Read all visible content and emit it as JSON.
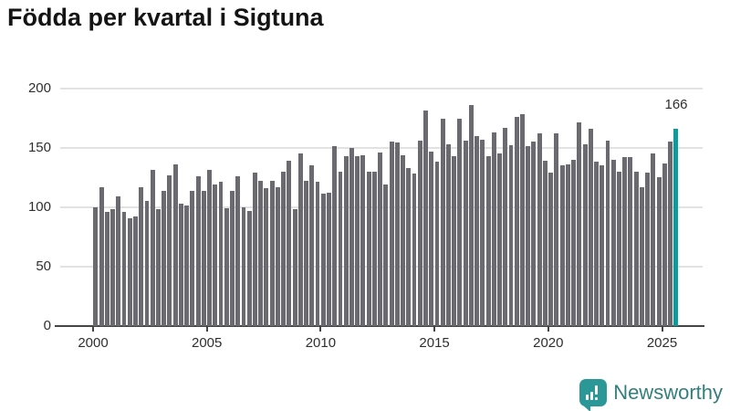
{
  "title": "Födda per kvartal i Sigtuna",
  "annotation": {
    "last_value_label": "166"
  },
  "branding": {
    "logo_text": "Newsworthy",
    "logo_icon": "bar-chart-speech-bubble-icon",
    "logo_icon_color": "#2b9897",
    "logo_text_color": "#337f7d"
  },
  "colors": {
    "bar": "#6a6a70",
    "highlight": "#0e9b9b",
    "grid": "#e2e2e2",
    "axis": "#454545",
    "text": "#2f2f2f",
    "title": "#141414",
    "background": "#ffffff"
  },
  "chart_data": {
    "type": "bar",
    "title": "Födda per kvartal i Sigtuna",
    "frequency": "quarterly",
    "x_start": {
      "year": 2000,
      "quarter": 1
    },
    "x_end": {
      "year": 2025,
      "quarter": 3
    },
    "values": [
      100,
      117,
      96,
      98,
      109,
      96,
      91,
      92,
      117,
      105,
      131,
      98,
      114,
      127,
      136,
      103,
      101,
      114,
      126,
      114,
      131,
      119,
      121,
      99,
      114,
      126,
      100,
      97,
      129,
      122,
      116,
      122,
      117,
      130,
      139,
      98,
      145,
      122,
      135,
      121,
      111,
      112,
      151,
      130,
      143,
      150,
      143,
      144,
      130,
      130,
      146,
      119,
      155,
      154,
      144,
      133,
      128,
      156,
      181,
      147,
      138,
      174,
      153,
      143,
      174,
      156,
      186,
      160,
      157,
      143,
      163,
      145,
      167,
      152,
      176,
      178,
      151,
      155,
      162,
      139,
      129,
      162,
      135,
      136,
      140,
      171,
      153,
      166,
      138,
      135,
      156,
      140,
      130,
      142,
      142,
      130,
      117,
      129,
      145,
      125,
      137,
      155,
      166
    ],
    "highlight_last": true,
    "highlight_last_value": 166,
    "ylim": [
      0,
      200
    ],
    "y_ticks": [
      0,
      50,
      100,
      150,
      200
    ],
    "x_ticks": [
      2000,
      2005,
      2010,
      2015,
      2020,
      2025
    ],
    "xlabel": "",
    "ylabel": "",
    "grid": true,
    "legend": false
  }
}
